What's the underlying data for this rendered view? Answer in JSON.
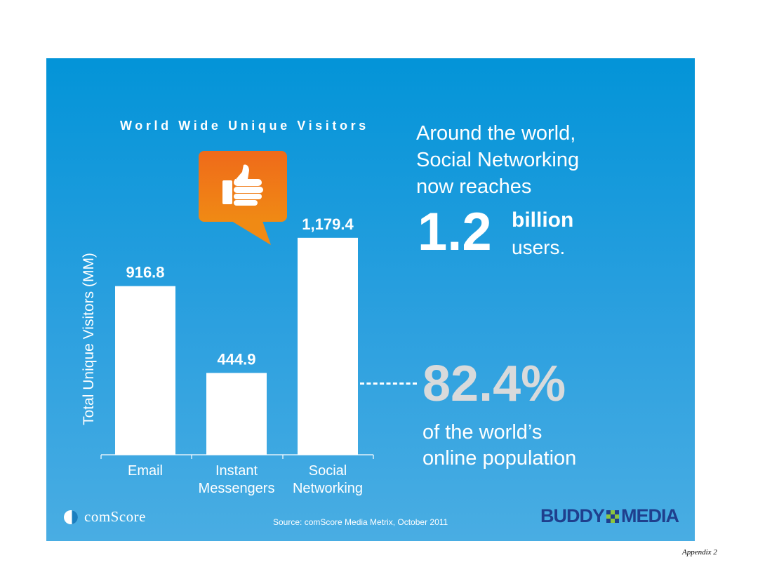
{
  "chart_data": {
    "type": "bar",
    "title": "World Wide Unique Visitors",
    "ylabel": "Total Unique Visitors (MM)",
    "xlabel": "",
    "categories": [
      [
        "Email"
      ],
      [
        "Instant",
        "Messengers"
      ],
      [
        "Social",
        "Networking"
      ]
    ],
    "values": [
      916.8,
      444.9,
      1179.4
    ],
    "value_labels": [
      "916.8",
      "444.9",
      "1,179.4"
    ],
    "ylim": [
      0,
      1400
    ],
    "grid": false,
    "bar_color": "#ffffff"
  },
  "callout": {
    "headline_lines": [
      "Around the world,",
      "Social Networking",
      "now reaches"
    ],
    "big_number": "1.2",
    "unit_top": "billion",
    "unit_bottom": "users.",
    "percent": "82.4%",
    "percent_lines": [
      "of the world’s",
      "online population"
    ]
  },
  "footer": {
    "comscore_logo_text": "comScore",
    "source": "Source: comScore Media Metrix, October 2011",
    "buddy_logo_left": "BUDDY",
    "buddy_logo_right": "MEDIA"
  },
  "page": {
    "appendix": "Appendix 2"
  },
  "colors": {
    "background_top": "#0394d8",
    "background_bottom": "#49ade3",
    "bar": "#ffffff",
    "percent_text": "#d9dadb",
    "bubble": "#f07a16",
    "buddy_blue": "#1f3f8d",
    "buddy_green": "#8cc63f"
  },
  "icons": {
    "bubble_icon": "thumbs-up-icon"
  }
}
